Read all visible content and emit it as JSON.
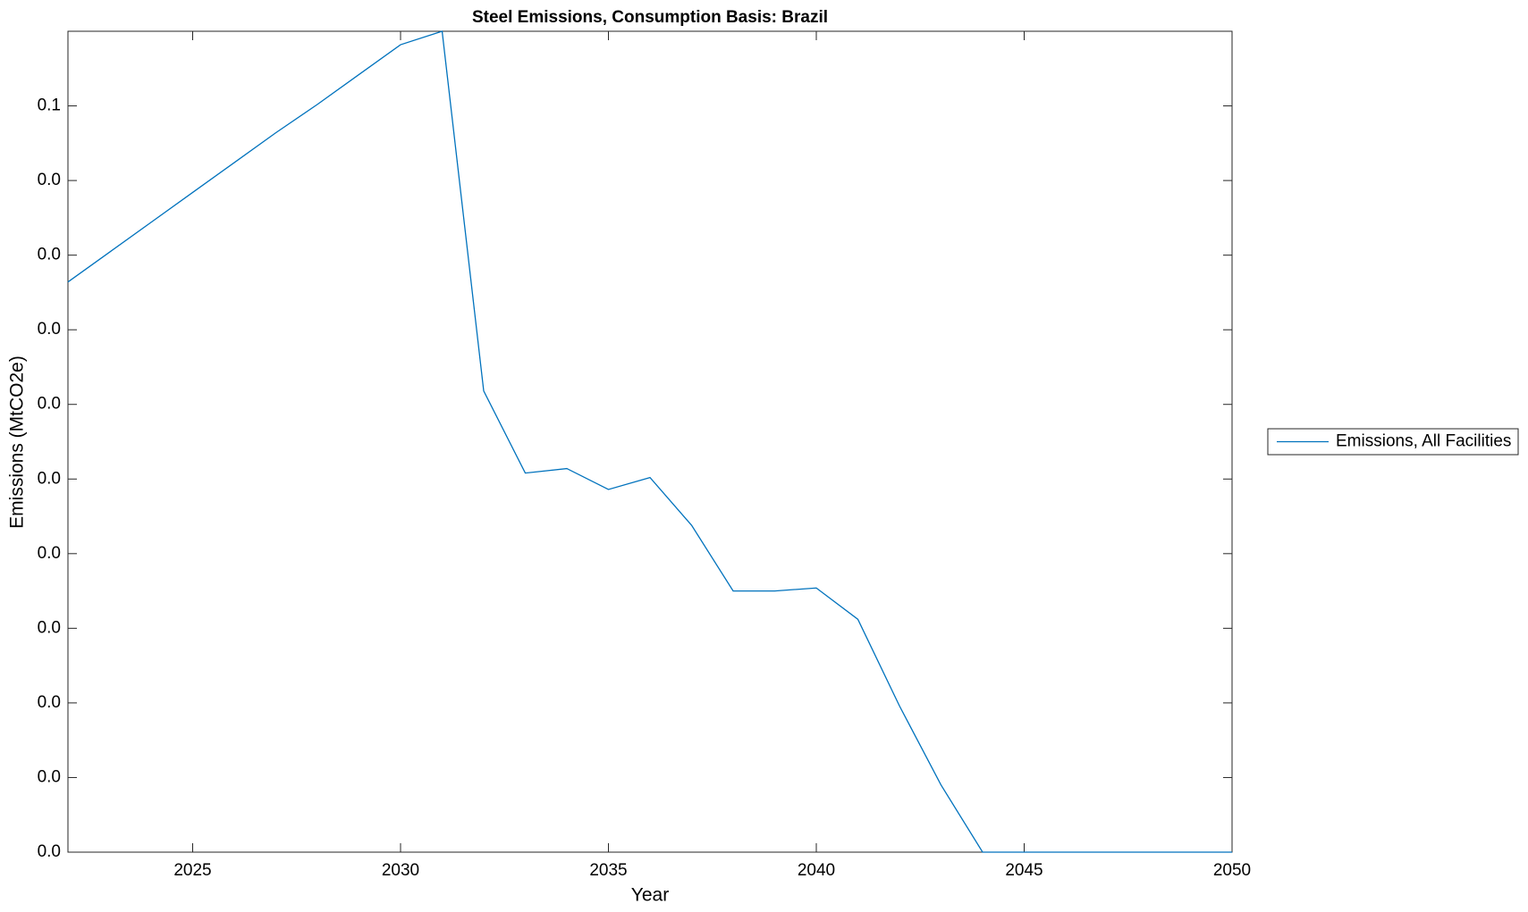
{
  "chart_data": {
    "type": "line",
    "title": "Steel Emissions, Consumption Basis: Brazil",
    "x_label": "Year",
    "y_label": "Emissions (MtCO2e)",
    "x": [
      2022,
      2023,
      2024,
      2025,
      2026,
      2027,
      2028,
      2029,
      2030,
      2031,
      2032,
      2033,
      2034,
      2035,
      2036,
      2037,
      2038,
      2039,
      2040,
      2041,
      2042,
      2043,
      2044,
      2045,
      2046,
      2047,
      2048,
      2049,
      2050
    ],
    "series": [
      {
        "name": "Emissions, All Facilities",
        "color": "#0072bd",
        "values": [
          0.0382,
          0.0402,
          0.0422,
          0.0442,
          0.0462,
          0.0482,
          0.0501,
          0.0521,
          0.0541,
          0.055,
          0.0309,
          0.0254,
          0.0257,
          0.0243,
          0.0251,
          0.0219,
          0.0175,
          0.0175,
          0.0177,
          0.0156,
          0.0098,
          0.0045,
          0,
          0,
          0,
          0,
          0,
          0,
          0
        ]
      }
    ],
    "xlim": [
      2022,
      2050
    ],
    "xticks": [
      2025,
      2030,
      2035,
      2040,
      2045,
      2050
    ],
    "ylim": [
      0,
      0.055
    ],
    "yticks": [
      {
        "value": 0,
        "label": "0.0"
      },
      {
        "value": 0.005,
        "label": "0.0"
      },
      {
        "value": 0.01,
        "label": "0.0"
      },
      {
        "value": 0.015,
        "label": "0.0"
      },
      {
        "value": 0.02,
        "label": "0.0"
      },
      {
        "value": 0.025,
        "label": "0.0"
      },
      {
        "value": 0.03,
        "label": "0.0"
      },
      {
        "value": 0.035,
        "label": "0.0"
      },
      {
        "value": 0.04,
        "label": "0.0"
      },
      {
        "value": 0.045,
        "label": "0.0"
      },
      {
        "value": 0.05,
        "label": "0.1"
      }
    ],
    "legend": "right"
  }
}
